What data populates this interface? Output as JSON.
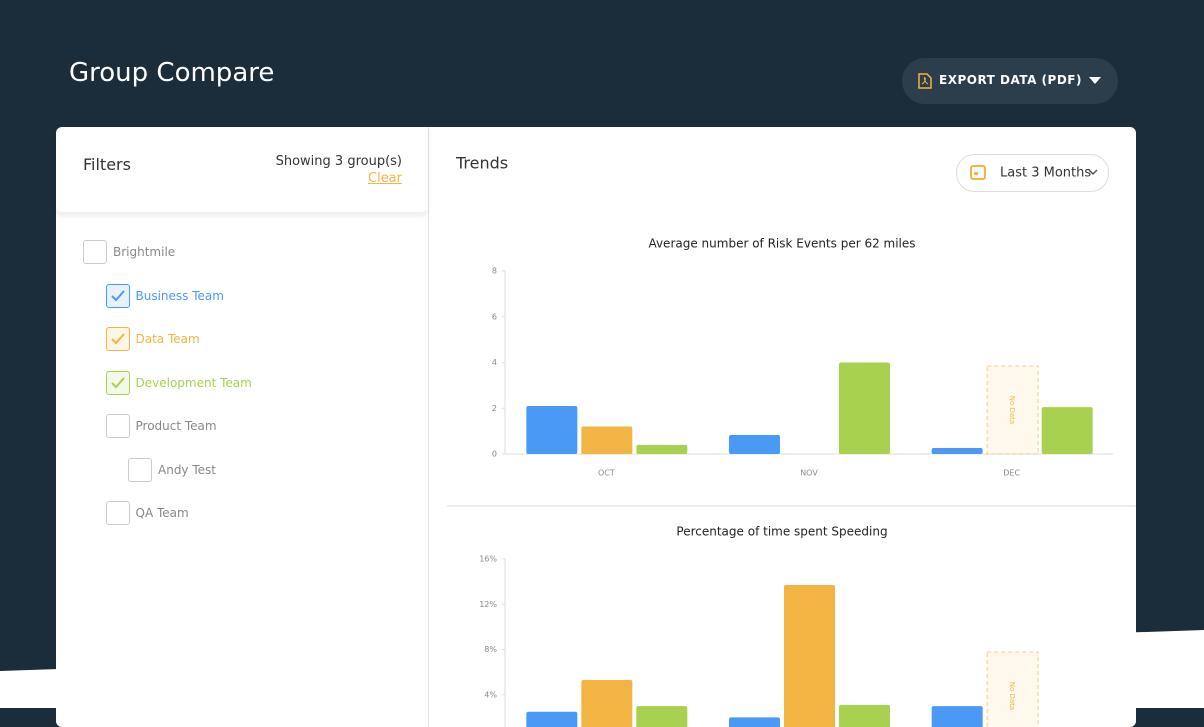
{
  "header": {
    "title": "Group Compare",
    "export_button": "EXPORT DATA (PDF)"
  },
  "filters": {
    "title": "Filters",
    "showing": "Showing 3 group(s)",
    "clear": "Clear",
    "groups": [
      {
        "label": "Brightmile",
        "checked": false,
        "children": [
          {
            "label": "Business Team",
            "checked": true,
            "color": "#4a9af5"
          },
          {
            "label": "Data Team",
            "checked": true,
            "color": "#f2b443"
          },
          {
            "label": "Development Team",
            "checked": true,
            "color": "#a8d14f"
          },
          {
            "label": "Product Team",
            "checked": false,
            "children": [
              {
                "label": "Andy Test",
                "checked": false
              }
            ]
          },
          {
            "label": "QA Team",
            "checked": false
          }
        ]
      }
    ]
  },
  "trends": {
    "title": "Trends",
    "period": "Last 3 Months",
    "charts": [
      {
        "type": "bar",
        "title": "Average number of Risk Events per 62 miles",
        "categories": [
          "OCT",
          "NOV",
          "DEC"
        ],
        "series": [
          {
            "color": "#4a9af5",
            "values": [
              2.1,
              0.83,
              0.26
            ]
          },
          {
            "color": "#f2b443",
            "values": [
              1.2,
              null,
              null
            ],
            "value_labels": [
              null,
              null,
              "No Data"
            ]
          },
          {
            "color": "#a8d14f",
            "values": [
              0.4,
              4.0,
              2.05
            ]
          }
        ],
        "ylim": [
          0,
          8
        ],
        "yticks": [
          0,
          2,
          4,
          6,
          8
        ]
      },
      {
        "type": "bar",
        "title": "Percentage of time spent Speeding",
        "series": [
          {
            "color": "#4a9af5",
            "values": [
              2.5,
              2.0,
              3.0
            ]
          },
          {
            "color": "#f2b443",
            "values": [
              5.3,
              13.7,
              null
            ],
            "value_labels": [
              null,
              null,
              "No Data"
            ]
          },
          {
            "color": "#a8d14f",
            "values": [
              3.0,
              3.1,
              null
            ]
          }
        ],
        "ylim": [
          0,
          16
        ],
        "yticks": [
          {
            "value": 4,
            "label": "4%"
          },
          {
            "value": 8,
            "label": "8%"
          },
          {
            "value": 12,
            "label": "12%"
          },
          {
            "value": 16,
            "label": "16%"
          }
        ]
      }
    ]
  }
}
